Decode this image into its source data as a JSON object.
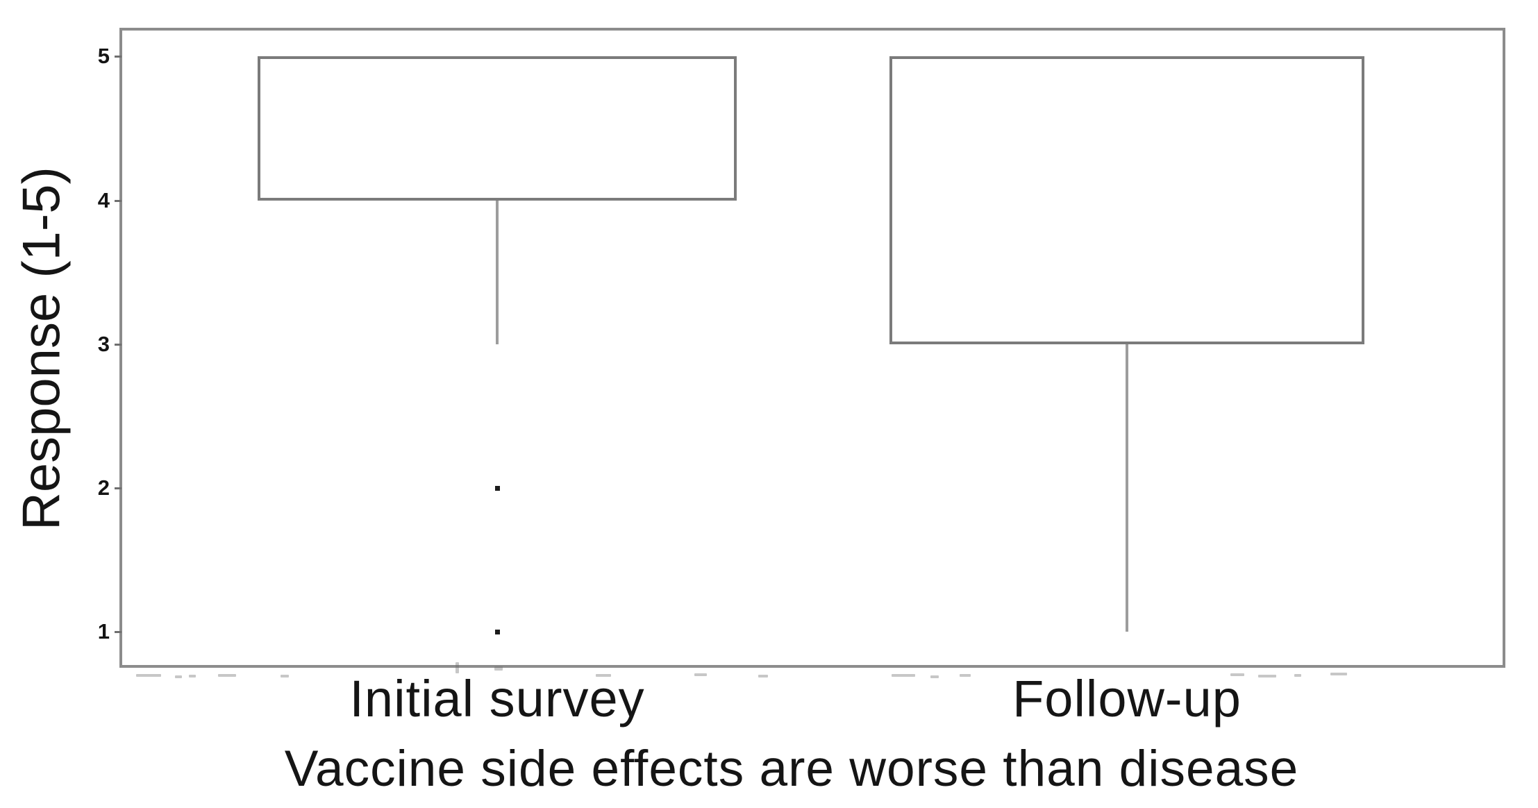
{
  "chart_data": {
    "type": "boxplot",
    "title": "",
    "xlabel": "Vaccine side effects are worse than disease",
    "ylabel": "Response (1-5)",
    "categories": [
      "Initial survey",
      "Follow-up"
    ],
    "yticks": [
      "1",
      "2",
      "3",
      "4",
      "5"
    ],
    "ylim": [
      0.75,
      5.2
    ],
    "grid": false,
    "legend": false,
    "series": [
      {
        "name": "Initial survey",
        "q1": 4,
        "median": 4,
        "q3": 5,
        "whisker_low": 3,
        "whisker_high": 5,
        "outliers": [
          2,
          1
        ]
      },
      {
        "name": "Follow-up",
        "q1": 3,
        "median": 3,
        "q3": 5,
        "whisker_low": 1,
        "whisker_high": 5,
        "outliers": []
      }
    ]
  }
}
